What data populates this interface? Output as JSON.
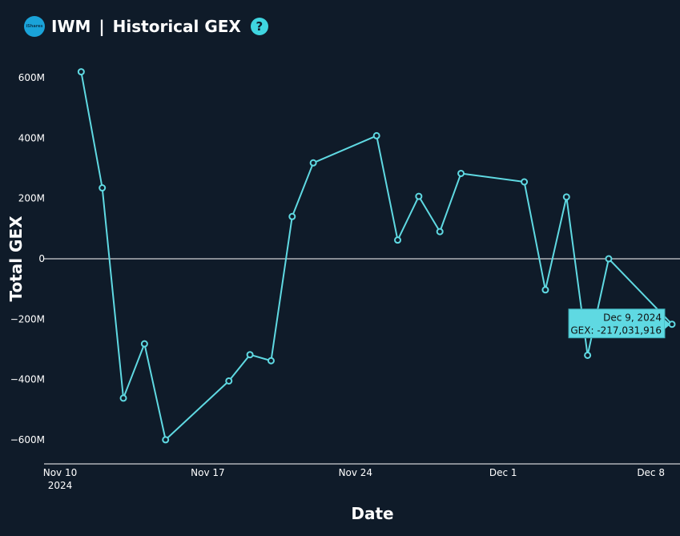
{
  "header": {
    "logo_text": "iShares",
    "ticker": "IWM",
    "separator": "|",
    "title": "Historical GEX",
    "help_glyph": "?"
  },
  "chart_data": {
    "type": "line",
    "xlabel": "Date",
    "ylabel": "Total GEX",
    "x_ticks": [
      {
        "date": "2024-11-10",
        "label": "Nov 10",
        "sublabel": "2024"
      },
      {
        "date": "2024-11-17",
        "label": "Nov 17",
        "sublabel": ""
      },
      {
        "date": "2024-11-24",
        "label": "Nov 24",
        "sublabel": ""
      },
      {
        "date": "2024-12-01",
        "label": "Dec 1",
        "sublabel": ""
      },
      {
        "date": "2024-12-08",
        "label": "Dec 8",
        "sublabel": ""
      }
    ],
    "y_ticks": [
      {
        "value": 600000000,
        "label": "600M"
      },
      {
        "value": 400000000,
        "label": "400M"
      },
      {
        "value": 200000000,
        "label": "200M"
      },
      {
        "value": 0,
        "label": "0"
      },
      {
        "value": -200000000,
        "label": "−200M"
      },
      {
        "value": -400000000,
        "label": "−400M"
      },
      {
        "value": -600000000,
        "label": "−600M"
      }
    ],
    "xlim": [
      "2024-11-10",
      "2024-12-09"
    ],
    "ylim": [
      -680000000,
      680000000
    ],
    "grid": false,
    "zero_line": true,
    "line_color": "#5fd9e2",
    "points": [
      {
        "x": "2024-11-11",
        "y": 620000000
      },
      {
        "x": "2024-11-12",
        "y": 235000000
      },
      {
        "x": "2024-11-13",
        "y": -462000000
      },
      {
        "x": "2024-11-14",
        "y": -282000000
      },
      {
        "x": "2024-11-15",
        "y": -600000000
      },
      {
        "x": "2024-11-18",
        "y": -405000000
      },
      {
        "x": "2024-11-19",
        "y": -318000000
      },
      {
        "x": "2024-11-20",
        "y": -338000000
      },
      {
        "x": "2024-11-21",
        "y": 140000000
      },
      {
        "x": "2024-11-22",
        "y": 318000000
      },
      {
        "x": "2024-11-25",
        "y": 408000000
      },
      {
        "x": "2024-11-26",
        "y": 62000000
      },
      {
        "x": "2024-11-27",
        "y": 207000000
      },
      {
        "x": "2024-11-28",
        "y": 90000000
      },
      {
        "x": "2024-11-29",
        "y": 283000000
      },
      {
        "x": "2024-12-02",
        "y": 255000000
      },
      {
        "x": "2024-12-03",
        "y": -103000000
      },
      {
        "x": "2024-12-04",
        "y": 205000000
      },
      {
        "x": "2024-12-05",
        "y": -320000000
      },
      {
        "x": "2024-12-06",
        "y": 0
      },
      {
        "x": "2024-12-09",
        "y": -217031916
      }
    ],
    "tooltip": {
      "point_index": 20,
      "date_text": "Dec 9, 2024",
      "value_text": "GEX: -217,031,916"
    }
  }
}
